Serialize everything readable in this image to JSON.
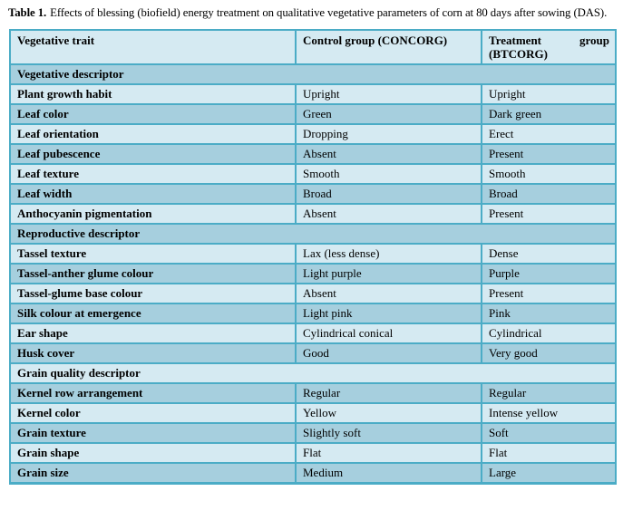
{
  "title": {
    "label": "Table 1.",
    "text": "Effects of blessing (biofield) energy treatment on qualitative vegetative parameters of corn at 80 days after sowing (DAS)."
  },
  "colors": {
    "border": "#4bacc6",
    "row_light": "#d5eaf2",
    "row_dark": "#a6cfde",
    "text": "#000000",
    "page_background": "#ffffff"
  },
  "table": {
    "header": {
      "trait": "Vegetative trait",
      "control": "Control group (CONCORG)",
      "treatment_word1": "Treatment",
      "treatment_word2": "group",
      "treatment_line2": "(BTCORG)"
    },
    "sections": [
      {
        "label": "Vegetative descriptor",
        "rows": [
          {
            "trait": "Plant growth habit",
            "control": "Upright",
            "treatment": "Upright"
          },
          {
            "trait": "Leaf color",
            "control": "Green",
            "treatment": "Dark green"
          },
          {
            "trait": "Leaf orientation",
            "control": "Dropping",
            "treatment": "Erect"
          },
          {
            "trait": "Leaf pubescence",
            "control": "Absent",
            "treatment": "Present"
          },
          {
            "trait": "Leaf texture",
            "control": "Smooth",
            "treatment": "Smooth"
          },
          {
            "trait": "Leaf width",
            "control": "Broad",
            "treatment": "Broad"
          },
          {
            "trait": "Anthocyanin pigmentation",
            "control": "Absent",
            "treatment": "Present"
          }
        ]
      },
      {
        "label": "Reproductive descriptor",
        "rows": [
          {
            "trait": "Tassel texture",
            "control": "Lax (less dense)",
            "treatment": "Dense"
          },
          {
            "trait": "Tassel-anther glume colour",
            "control": "Light purple",
            "treatment": "Purple"
          },
          {
            "trait": "Tassel-glume base colour",
            "control": "Absent",
            "treatment": "Present"
          },
          {
            "trait": "Silk colour at emergence",
            "control": "Light pink",
            "treatment": "Pink"
          },
          {
            "trait": "Ear shape",
            "control": "Cylindrical conical",
            "treatment": "Cylindrical"
          },
          {
            "trait": "Husk cover",
            "control": "Good",
            "treatment": "Very good"
          }
        ]
      },
      {
        "label": "Grain quality descriptor",
        "rows": [
          {
            "trait": "Kernel row arrangement",
            "control": "Regular",
            "treatment": "Regular"
          },
          {
            "trait": "Kernel color",
            "control": "Yellow",
            "treatment": "Intense yellow"
          },
          {
            "trait": "Grain texture",
            "control": "Slightly soft",
            "treatment": "Soft"
          },
          {
            "trait": "Grain shape",
            "control": "Flat",
            "treatment": "Flat"
          },
          {
            "trait": "Grain size",
            "control": "Medium",
            "treatment": "Large"
          }
        ]
      }
    ]
  }
}
